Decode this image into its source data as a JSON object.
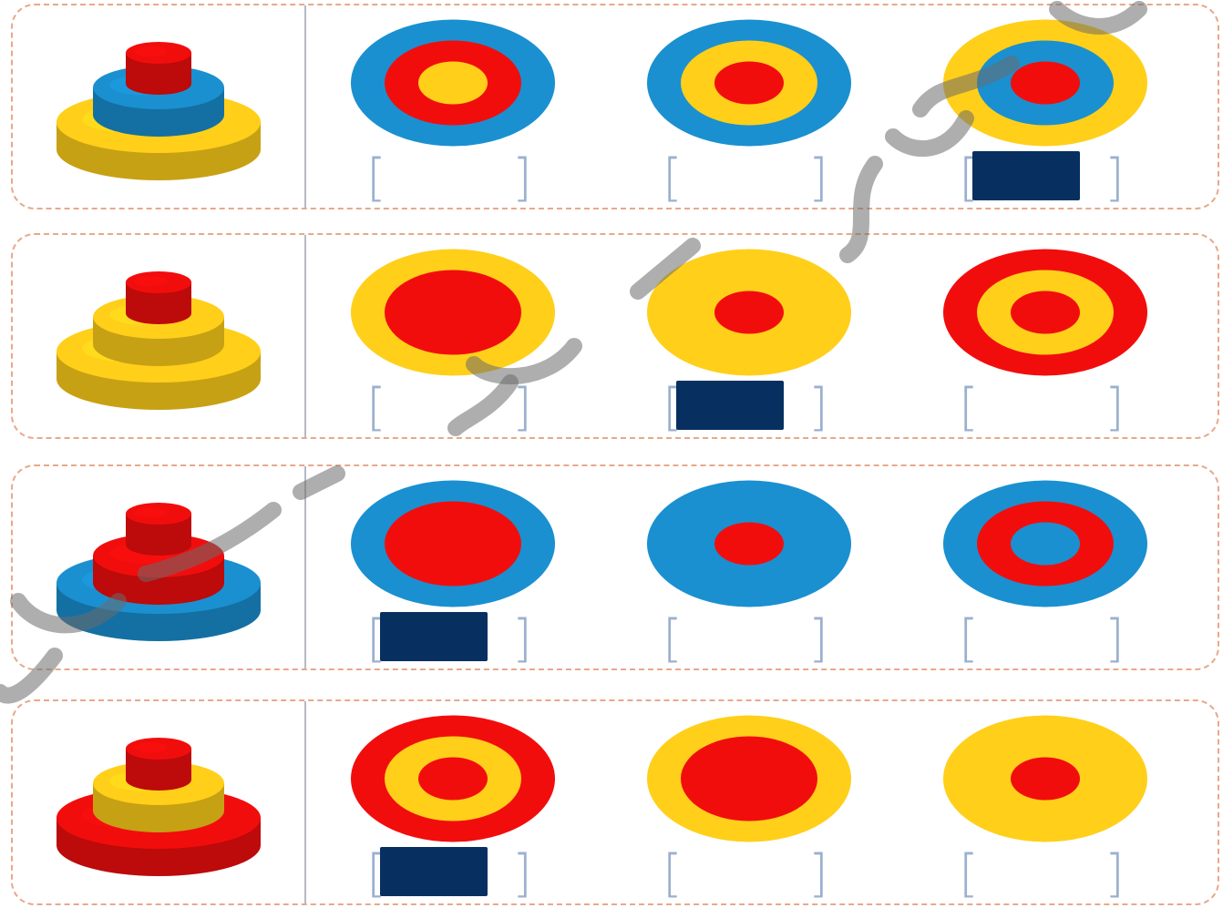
{
  "colors": {
    "red": "#f20d0d",
    "blue": "#1a90d0",
    "yellow": "#ffcf1a",
    "answer_mark": "#073061",
    "row_border": "#e8a88a",
    "bracket": "#9bb0cf"
  },
  "rows": [
    {
      "stack": [
        "yellow",
        "blue",
        "red"
      ],
      "options": [
        {
          "rings": [
            "blue",
            "red",
            "yellow"
          ],
          "marked": false
        },
        {
          "rings": [
            "blue",
            "yellow",
            "red"
          ],
          "marked": false
        },
        {
          "rings": [
            "yellow",
            "blue",
            "red"
          ],
          "marked": true
        }
      ]
    },
    {
      "stack": [
        "yellow",
        "yellow",
        "red"
      ],
      "options": [
        {
          "rings": [
            "yellow",
            "red"
          ],
          "marked": false
        },
        {
          "rings": [
            "yellow",
            "red"
          ],
          "marked": true
        },
        {
          "rings": [
            "red",
            "yellow",
            "red"
          ],
          "marked": false
        }
      ]
    },
    {
      "stack": [
        "blue",
        "red",
        "red"
      ],
      "options": [
        {
          "rings": [
            "blue",
            "red"
          ],
          "marked": true
        },
        {
          "rings": [
            "blue",
            "red"
          ],
          "marked": false
        },
        {
          "rings": [
            "blue",
            "red",
            "blue"
          ],
          "marked": false
        }
      ]
    },
    {
      "stack": [
        "red",
        "yellow",
        "red"
      ],
      "options": [
        {
          "rings": [
            "red",
            "yellow",
            "red"
          ],
          "marked": true
        },
        {
          "rings": [
            "yellow",
            "red"
          ],
          "marked": false
        },
        {
          "rings": [
            "yellow",
            "red"
          ],
          "marked": false
        }
      ]
    }
  ]
}
